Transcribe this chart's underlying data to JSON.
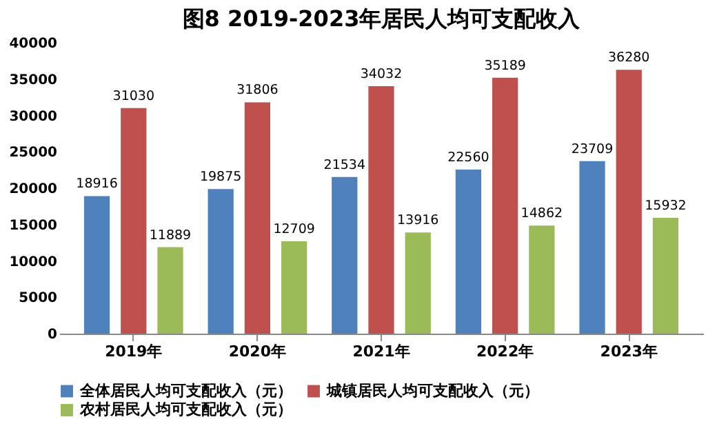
{
  "chart_data": {
    "type": "bar",
    "title": "图8  2019-2023年居民人均可支配收入",
    "categories": [
      "2019年",
      "2020年",
      "2021年",
      "2022年",
      "2023年"
    ],
    "series": [
      {
        "name": "全体居民人均可支配收入（元）",
        "color": "#4f81bd",
        "values": [
          18916,
          19875,
          21534,
          22560,
          23709
        ]
      },
      {
        "name": "城镇居民人均可支配收入（元）",
        "color": "#c0504d",
        "values": [
          31030,
          31806,
          34032,
          35189,
          36280
        ]
      },
      {
        "name": "农村居民人均可支配收入（元）",
        "color": "#9bbb59",
        "values": [
          11889,
          12709,
          13916,
          14862,
          15932
        ]
      }
    ],
    "ylim": [
      0,
      40000
    ],
    "yticks": [
      0,
      5000,
      10000,
      15000,
      20000,
      25000,
      30000,
      35000,
      40000
    ],
    "grid": false,
    "legend": "bottom",
    "data_labels": true
  }
}
